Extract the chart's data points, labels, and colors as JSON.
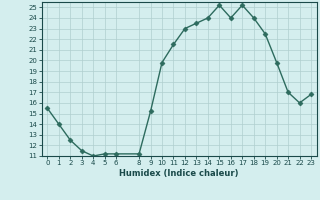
{
  "x": [
    0,
    1,
    2,
    3,
    4,
    5,
    6,
    8,
    9,
    10,
    11,
    12,
    13,
    14,
    15,
    16,
    17,
    18,
    19,
    20,
    21,
    22,
    23
  ],
  "y": [
    15.5,
    14.0,
    12.5,
    11.5,
    11.0,
    11.2,
    11.2,
    11.2,
    15.2,
    19.8,
    21.5,
    23.0,
    23.5,
    24.0,
    25.2,
    24.0,
    25.2,
    24.0,
    22.5,
    19.8,
    17.0,
    16.0,
    16.8
  ],
  "line_color": "#2d6b5e",
  "marker": "D",
  "marker_size": 2.5,
  "bg_color": "#d4eeee",
  "grid_color": "#b0cfcf",
  "xlabel": "Humidex (Indice chaleur)",
  "xlim": [
    -0.5,
    23.5
  ],
  "ylim": [
    11,
    25.5
  ],
  "yticks": [
    11,
    12,
    13,
    14,
    15,
    16,
    17,
    18,
    19,
    20,
    21,
    22,
    23,
    24,
    25
  ],
  "xticks": [
    0,
    1,
    2,
    3,
    4,
    5,
    6,
    8,
    9,
    10,
    11,
    12,
    13,
    14,
    15,
    16,
    17,
    18,
    19,
    20,
    21,
    22,
    23
  ],
  "font_color": "#1a4a4a",
  "line_width": 1.0
}
